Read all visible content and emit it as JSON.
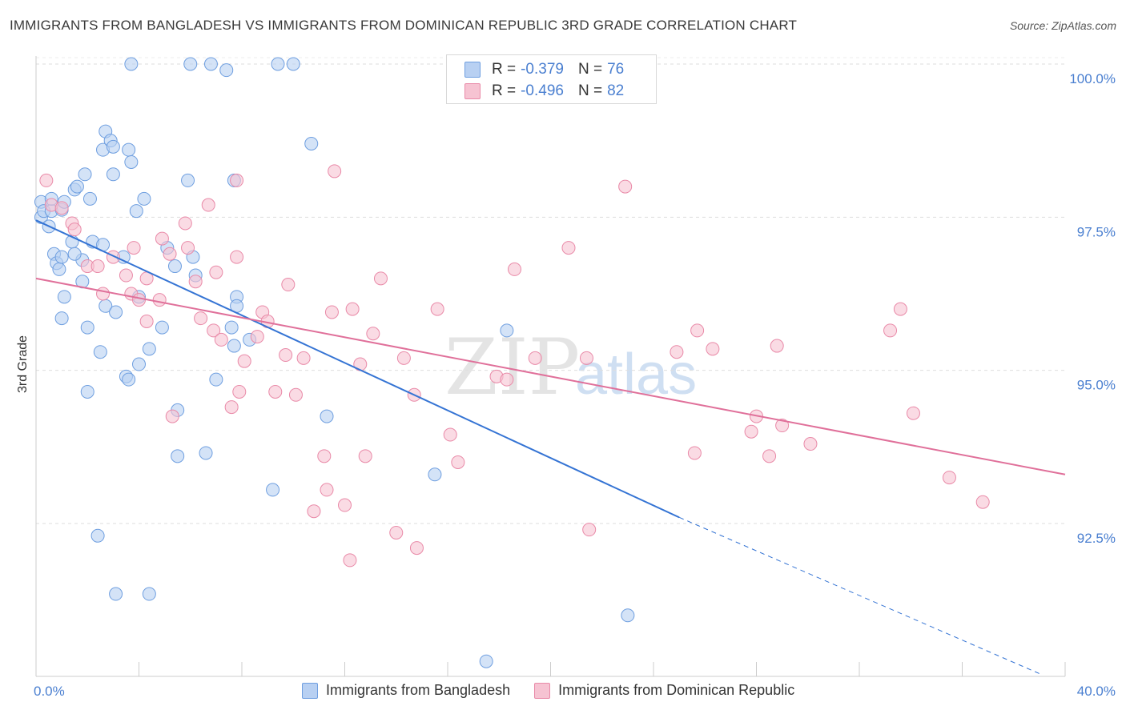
{
  "title": "IMMIGRANTS FROM BANGLADESH VS IMMIGRANTS FROM DOMINICAN REPUBLIC 3RD GRADE CORRELATION CHART",
  "source": "Source: ZipAtlas.com",
  "watermark": {
    "zip": "ZIP",
    "atlas": "atlas"
  },
  "legend": {
    "rows": [
      {
        "r_label": "R =",
        "r_value": "-0.379",
        "n_label": "N =",
        "n_value": "76"
      },
      {
        "r_label": "R =",
        "r_value": "-0.496",
        "n_label": "N =",
        "n_value": "82"
      }
    ]
  },
  "bottom_legend": [
    "Immigrants from Bangladesh",
    "Immigrants from Dominican Republic"
  ],
  "chart_data": {
    "type": "scatter",
    "ylabel": "3rd Grade",
    "xlabel": "",
    "xlim": [
      0,
      40
    ],
    "ylim": [
      90.0,
      100.2
    ],
    "x_tick_labels": [
      {
        "x": 0,
        "label": "0.0%"
      },
      {
        "x": 40,
        "label": "40.0%"
      }
    ],
    "y_ticks": [
      {
        "y": 100.0,
        "label": "100.0%"
      },
      {
        "y": 97.5,
        "label": "97.5%"
      },
      {
        "y": 95.0,
        "label": "95.0%"
      },
      {
        "y": 92.5,
        "label": "92.5%"
      }
    ],
    "grid": "horizontal dashed",
    "legend_position": "top-center",
    "series": [
      {
        "name": "Immigrants from Bangladesh",
        "color": "#6f9fe0",
        "fill": "#b8d0f2",
        "trend": {
          "x0": 0,
          "y0": 97.45,
          "x1": 25.0,
          "y1": 92.6,
          "dash_to_x": 39.0,
          "dash_to_y": 90.05
        },
        "trend_color": "#3574d4",
        "points": [
          [
            0.2,
            97.75
          ],
          [
            0.2,
            97.5
          ],
          [
            0.3,
            97.6
          ],
          [
            0.5,
            97.35
          ],
          [
            0.6,
            97.6
          ],
          [
            0.6,
            97.8
          ],
          [
            0.7,
            96.9
          ],
          [
            0.8,
            96.75
          ],
          [
            0.9,
            96.65
          ],
          [
            1.0,
            97.62
          ],
          [
            1.1,
            97.75
          ],
          [
            1.1,
            96.2
          ],
          [
            1.0,
            95.85
          ],
          [
            1.4,
            97.1
          ],
          [
            1.5,
            97.95
          ],
          [
            1.6,
            98.0
          ],
          [
            1.9,
            98.2
          ],
          [
            2.1,
            97.8
          ],
          [
            2.2,
            97.1
          ],
          [
            1.8,
            96.8
          ],
          [
            1.8,
            96.45
          ],
          [
            2.0,
            95.7
          ],
          [
            2.0,
            94.65
          ],
          [
            2.6,
            98.6
          ],
          [
            2.7,
            98.9
          ],
          [
            2.9,
            98.75
          ],
          [
            3.0,
            98.65
          ],
          [
            3.0,
            98.2
          ],
          [
            2.5,
            95.3
          ],
          [
            2.7,
            96.05
          ],
          [
            3.1,
            95.95
          ],
          [
            3.4,
            96.85
          ],
          [
            3.5,
            94.9
          ],
          [
            3.6,
            94.85
          ],
          [
            3.6,
            98.6
          ],
          [
            3.7,
            98.4
          ],
          [
            3.7,
            100.0
          ],
          [
            3.9,
            97.6
          ],
          [
            4.0,
            96.2
          ],
          [
            4.0,
            95.1
          ],
          [
            4.2,
            97.8
          ],
          [
            4.4,
            95.35
          ],
          [
            4.9,
            95.7
          ],
          [
            5.1,
            97.0
          ],
          [
            5.4,
            96.7
          ],
          [
            5.5,
            94.35
          ],
          [
            5.5,
            93.6
          ],
          [
            5.9,
            98.1
          ],
          [
            6.0,
            100.0
          ],
          [
            6.1,
            96.85
          ],
          [
            6.2,
            96.55
          ],
          [
            6.6,
            93.65
          ],
          [
            6.8,
            100.0
          ],
          [
            7.0,
            94.85
          ],
          [
            7.4,
            99.9
          ],
          [
            7.6,
            95.7
          ],
          [
            7.7,
            98.1
          ],
          [
            7.7,
            95.4
          ],
          [
            7.8,
            96.2
          ],
          [
            7.8,
            96.05
          ],
          [
            8.3,
            95.5
          ],
          [
            9.2,
            93.05
          ],
          [
            9.4,
            100.0
          ],
          [
            10.0,
            100.0
          ],
          [
            10.7,
            98.7
          ],
          [
            11.3,
            94.25
          ],
          [
            15.5,
            93.3
          ],
          [
            18.3,
            95.65
          ],
          [
            23.0,
            91.0
          ],
          [
            17.5,
            90.25
          ],
          [
            2.4,
            92.3
          ],
          [
            3.1,
            91.35
          ],
          [
            4.4,
            91.35
          ],
          [
            1.5,
            96.9
          ],
          [
            1.0,
            96.85
          ],
          [
            2.6,
            97.05
          ]
        ]
      },
      {
        "name": "Immigrants from Dominican Republic",
        "color": "#e98aa8",
        "fill": "#f6c3d2",
        "trend": {
          "x0": 0,
          "y0": 96.5,
          "x1": 40,
          "y1": 93.3
        },
        "trend_color": "#e0709a",
        "points": [
          [
            0.4,
            98.1
          ],
          [
            0.6,
            97.7
          ],
          [
            1.0,
            97.65
          ],
          [
            1.4,
            97.4
          ],
          [
            1.5,
            97.3
          ],
          [
            2.0,
            96.7
          ],
          [
            2.4,
            96.7
          ],
          [
            2.6,
            96.25
          ],
          [
            3.5,
            96.55
          ],
          [
            3.7,
            96.25
          ],
          [
            3.8,
            97.0
          ],
          [
            3.0,
            96.85
          ],
          [
            4.0,
            96.15
          ],
          [
            4.3,
            96.5
          ],
          [
            4.3,
            95.8
          ],
          [
            4.8,
            96.15
          ],
          [
            4.9,
            97.15
          ],
          [
            5.2,
            96.9
          ],
          [
            5.3,
            94.25
          ],
          [
            5.8,
            97.4
          ],
          [
            5.9,
            97.0
          ],
          [
            6.2,
            96.45
          ],
          [
            6.4,
            95.85
          ],
          [
            6.7,
            97.7
          ],
          [
            6.9,
            95.65
          ],
          [
            7.0,
            96.6
          ],
          [
            7.2,
            95.5
          ],
          [
            7.6,
            94.4
          ],
          [
            7.8,
            98.1
          ],
          [
            7.8,
            96.85
          ],
          [
            7.9,
            94.65
          ],
          [
            8.1,
            95.15
          ],
          [
            8.6,
            95.55
          ],
          [
            8.8,
            95.95
          ],
          [
            9.0,
            95.8
          ],
          [
            9.3,
            94.65
          ],
          [
            9.7,
            95.25
          ],
          [
            9.8,
            96.4
          ],
          [
            10.1,
            94.6
          ],
          [
            10.4,
            95.2
          ],
          [
            10.8,
            92.7
          ],
          [
            11.2,
            93.6
          ],
          [
            11.3,
            93.05
          ],
          [
            11.5,
            95.95
          ],
          [
            11.6,
            98.25
          ],
          [
            12.0,
            92.8
          ],
          [
            12.2,
            91.9
          ],
          [
            12.3,
            96.0
          ],
          [
            12.6,
            95.1
          ],
          [
            12.8,
            93.6
          ],
          [
            13.1,
            95.6
          ],
          [
            13.4,
            96.5
          ],
          [
            14.0,
            92.35
          ],
          [
            14.3,
            95.2
          ],
          [
            14.7,
            94.6
          ],
          [
            14.8,
            92.1
          ],
          [
            15.6,
            96.0
          ],
          [
            16.1,
            93.95
          ],
          [
            16.4,
            93.5
          ],
          [
            17.9,
            94.9
          ],
          [
            18.3,
            94.85
          ],
          [
            18.6,
            96.65
          ],
          [
            19.4,
            95.2
          ],
          [
            20.7,
            97.0
          ],
          [
            21.4,
            95.2
          ],
          [
            21.5,
            92.4
          ],
          [
            22.9,
            98.0
          ],
          [
            24.9,
            95.3
          ],
          [
            25.6,
            93.65
          ],
          [
            25.7,
            95.65
          ],
          [
            26.3,
            95.35
          ],
          [
            27.8,
            94.0
          ],
          [
            28.0,
            94.25
          ],
          [
            28.5,
            93.6
          ],
          [
            28.8,
            95.4
          ],
          [
            29.0,
            94.1
          ],
          [
            30.1,
            93.8
          ],
          [
            33.2,
            95.65
          ],
          [
            33.6,
            96.0
          ],
          [
            34.1,
            94.3
          ],
          [
            35.5,
            93.25
          ],
          [
            36.8,
            92.85
          ]
        ]
      }
    ]
  }
}
